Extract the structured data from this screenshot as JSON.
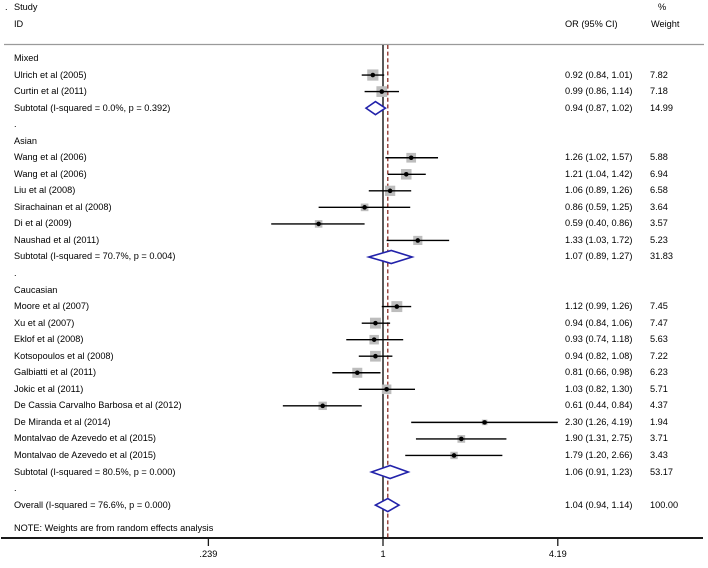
{
  "header": {
    "leading_dot": ".",
    "study_line1": "Study",
    "study_line2": "ID",
    "or_column": "OR (95% CI)",
    "weight_line1": "%",
    "weight_line2": "Weight"
  },
  "note": "NOTE: Weights are from random effects analysis",
  "colors": {
    "box": "#bdbdbd",
    "ci_line": "#000000",
    "marker": "#000000",
    "diamond_stroke": "#2222aa",
    "diamond_fill": "#ffffff",
    "null_line": "#000000",
    "overall_dashed_line": "#8b2c24",
    "header_rule": "#9a9a9a",
    "axis_line": "#1a1a1a"
  },
  "chart_data": {
    "type": "forest",
    "x_scale": "log",
    "x_ticks": [
      {
        "label": ".239",
        "value": 0.239
      },
      {
        "label": "1",
        "value": 1
      },
      {
        "label": "4.19",
        "value": 4.19
      }
    ],
    "null_line_value": 1,
    "overall_estimate_line_value": 1.04,
    "rows": [
      {
        "kind": "group",
        "label": "Mixed"
      },
      {
        "kind": "study",
        "label": "Ulrich et al (2005)",
        "or": 0.92,
        "lo": 0.84,
        "hi": 1.01,
        "or_text": "0.92 (0.84, 1.01)",
        "weight": 7.82,
        "weight_text": "7.82"
      },
      {
        "kind": "study",
        "label": "Curtin et al (2011)",
        "or": 0.99,
        "lo": 0.86,
        "hi": 1.14,
        "or_text": "0.99 (0.86, 1.14)",
        "weight": 7.18,
        "weight_text": "7.18"
      },
      {
        "kind": "subtotal",
        "label": "Subtotal  (I-squared = 0.0%, p = 0.392)",
        "or": 0.94,
        "lo": 0.87,
        "hi": 1.02,
        "or_text": "0.94 (0.87, 1.02)",
        "weight_text": "14.99"
      },
      {
        "kind": "spacer",
        "label": "."
      },
      {
        "kind": "group",
        "label": "Asian"
      },
      {
        "kind": "study",
        "label": "Wang et al (2006)",
        "or": 1.26,
        "lo": 1.02,
        "hi": 1.57,
        "or_text": "1.26 (1.02, 1.57)",
        "weight": 5.88,
        "weight_text": "5.88"
      },
      {
        "kind": "study",
        "label": "Wang et al (2006)",
        "or": 1.21,
        "lo": 1.04,
        "hi": 1.42,
        "or_text": "1.21 (1.04, 1.42)",
        "weight": 6.94,
        "weight_text": "6.94"
      },
      {
        "kind": "study",
        "label": "Liu et al (2008)",
        "or": 1.06,
        "lo": 0.89,
        "hi": 1.26,
        "or_text": "1.06 (0.89, 1.26)",
        "weight": 6.58,
        "weight_text": "6.58"
      },
      {
        "kind": "study",
        "label": "Sirachainan et al (2008)",
        "or": 0.86,
        "lo": 0.59,
        "hi": 1.25,
        "or_text": "0.86 (0.59, 1.25)",
        "weight": 3.64,
        "weight_text": "3.64"
      },
      {
        "kind": "study",
        "label": "Di et al (2009)",
        "or": 0.59,
        "lo": 0.4,
        "hi": 0.86,
        "or_text": "0.59 (0.40, 0.86)",
        "weight": 3.57,
        "weight_text": "3.57"
      },
      {
        "kind": "study",
        "label": "Naushad et al (2011)",
        "or": 1.33,
        "lo": 1.03,
        "hi": 1.72,
        "or_text": "1.33 (1.03, 1.72)",
        "weight": 5.23,
        "weight_text": "5.23"
      },
      {
        "kind": "subtotal",
        "label": "Subtotal  (I-squared = 70.7%, p = 0.004)",
        "or": 1.07,
        "lo": 0.89,
        "hi": 1.27,
        "or_text": "1.07 (0.89, 1.27)",
        "weight_text": "31.83"
      },
      {
        "kind": "spacer",
        "label": "."
      },
      {
        "kind": "group",
        "label": "Caucasian"
      },
      {
        "kind": "study",
        "label": "Moore et al (2007)",
        "or": 1.12,
        "lo": 0.99,
        "hi": 1.26,
        "or_text": "1.12 (0.99, 1.26)",
        "weight": 7.45,
        "weight_text": "7.45"
      },
      {
        "kind": "study",
        "label": "Xu et al (2007)",
        "or": 0.94,
        "lo": 0.84,
        "hi": 1.06,
        "or_text": "0.94 (0.84, 1.06)",
        "weight": 7.47,
        "weight_text": "7.47"
      },
      {
        "kind": "study",
        "label": "Eklof et al (2008)",
        "or": 0.93,
        "lo": 0.74,
        "hi": 1.18,
        "or_text": "0.93 (0.74, 1.18)",
        "weight": 5.63,
        "weight_text": "5.63"
      },
      {
        "kind": "study",
        "label": "Kotsopoulos et al (2008)",
        "or": 0.94,
        "lo": 0.82,
        "hi": 1.08,
        "or_text": "0.94 (0.82, 1.08)",
        "weight": 7.22,
        "weight_text": "7.22"
      },
      {
        "kind": "study",
        "label": "Galbiatti et al (2011)",
        "or": 0.81,
        "lo": 0.66,
        "hi": 0.98,
        "or_text": "0.81 (0.66, 0.98)",
        "weight": 6.23,
        "weight_text": "6.23"
      },
      {
        "kind": "study",
        "label": "Jokic et al (2011)",
        "or": 1.03,
        "lo": 0.82,
        "hi": 1.3,
        "or_text": "1.03 (0.82, 1.30)",
        "weight": 5.71,
        "weight_text": "5.71"
      },
      {
        "kind": "study",
        "label": "De Cassia Carvalho Barbosa et al (2012)",
        "or": 0.61,
        "lo": 0.44,
        "hi": 0.84,
        "or_text": "0.61 (0.44, 0.84)",
        "weight": 4.37,
        "weight_text": "4.37"
      },
      {
        "kind": "study",
        "label": "De Miranda et al (2014)",
        "or": 2.3,
        "lo": 1.26,
        "hi": 4.19,
        "or_text": "2.30 (1.26, 4.19)",
        "weight": 1.94,
        "weight_text": "1.94"
      },
      {
        "kind": "study",
        "label": "Montalvao de Azevedo et al (2015)",
        "or": 1.9,
        "lo": 1.31,
        "hi": 2.75,
        "or_text": "1.90 (1.31, 2.75)",
        "weight": 3.71,
        "weight_text": "3.71"
      },
      {
        "kind": "study",
        "label": "Montalvao de Azevedo et al (2015)",
        "or": 1.79,
        "lo": 1.2,
        "hi": 2.66,
        "or_text": "1.79 (1.20, 2.66)",
        "weight": 3.43,
        "weight_text": "3.43"
      },
      {
        "kind": "subtotal",
        "label": "Subtotal  (I-squared = 80.5%, p = 0.000)",
        "or": 1.06,
        "lo": 0.91,
        "hi": 1.23,
        "or_text": "1.06 (0.91, 1.23)",
        "weight_text": "53.17"
      },
      {
        "kind": "spacer",
        "label": "."
      },
      {
        "kind": "overall",
        "label": "Overall  (I-squared = 76.6%, p = 0.000)",
        "or": 1.04,
        "lo": 0.94,
        "hi": 1.14,
        "or_text": "1.04 (0.94, 1.14)",
        "weight_text": "100.00"
      }
    ]
  }
}
